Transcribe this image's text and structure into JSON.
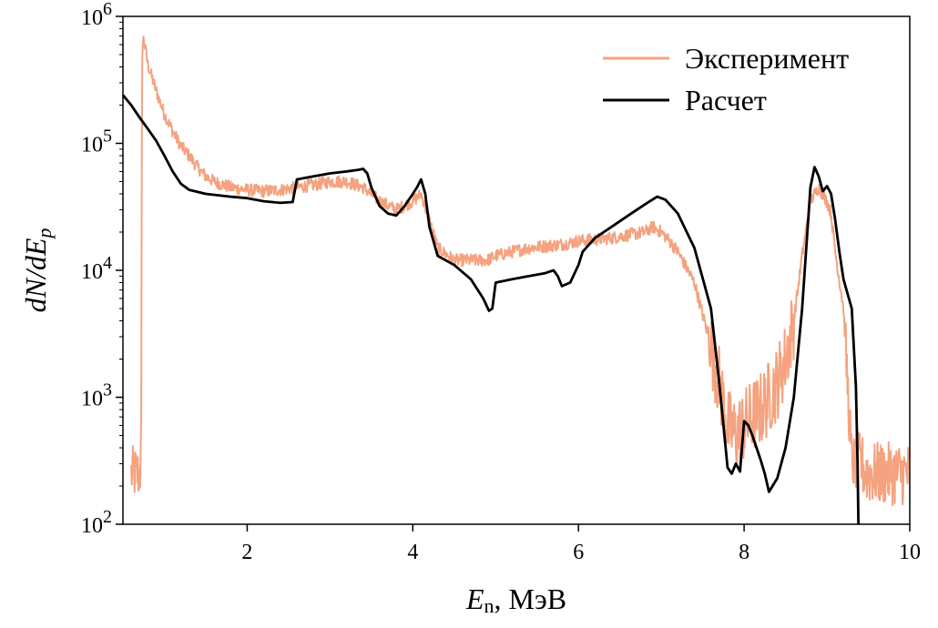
{
  "chart_data": {
    "type": "line",
    "xlabel": "E_n, МэВ",
    "xlabel_main": "E",
    "xlabel_sub": "n",
    "xlabel_unit": ", МэВ",
    "ylabel": "dN/dE_p",
    "xlim": [
      0.5,
      10
    ],
    "ylim": [
      100,
      1000000
    ],
    "yscale": "log",
    "grid": false,
    "legend_position": "top-right",
    "x_ticks": [
      2,
      4,
      6,
      8,
      10
    ],
    "x_tick_labels": [
      "2",
      "4",
      "6",
      "8",
      "10"
    ],
    "y_ticks": [
      100,
      1000,
      10000,
      100000,
      1000000
    ],
    "y_tick_labels": [
      {
        "base": "10",
        "exp": "2"
      },
      {
        "base": "10",
        "exp": "3"
      },
      {
        "base": "10",
        "exp": "4"
      },
      {
        "base": "10",
        "exp": "5"
      },
      {
        "base": "10",
        "exp": "6"
      }
    ],
    "series": [
      {
        "name": "Эксперимент",
        "color": "#f4a27f",
        "style": "noisy",
        "x": [
          0.6,
          0.62,
          0.66,
          0.7,
          0.72,
          0.73,
          0.75,
          0.8,
          0.9,
          1.0,
          1.1,
          1.2,
          1.3,
          1.4,
          1.5,
          1.6,
          1.8,
          2.0,
          2.2,
          2.4,
          2.6,
          2.8,
          3.0,
          3.2,
          3.4,
          3.6,
          3.8,
          4.0,
          4.1,
          4.2,
          4.3,
          4.5,
          4.7,
          4.9,
          5.0,
          5.2,
          5.4,
          5.6,
          5.8,
          6.0,
          6.2,
          6.4,
          6.6,
          6.8,
          6.9,
          7.0,
          7.1,
          7.2,
          7.4,
          7.6,
          7.7,
          7.8,
          7.9,
          8.0,
          8.1,
          8.2,
          8.3,
          8.4,
          8.5,
          8.6,
          8.7,
          8.8,
          8.9,
          9.0,
          9.05,
          9.1,
          9.2,
          9.3,
          9.4,
          9.5,
          9.7,
          9.9,
          10.0
        ],
        "y": [
          250,
          250,
          250,
          250,
          300,
          500000,
          680000,
          420000,
          260000,
          170000,
          125000,
          95000,
          80000,
          65000,
          55000,
          50000,
          45000,
          43000,
          42000,
          43000,
          45000,
          47000,
          50000,
          50000,
          45000,
          35000,
          30000,
          35000,
          40000,
          25000,
          15000,
          12000,
          12000,
          12000,
          13000,
          14000,
          15000,
          15500,
          16000,
          17000,
          17500,
          18000,
          19000,
          20000,
          22000,
          20000,
          17000,
          14000,
          8000,
          2500,
          1300,
          600,
          500,
          600,
          700,
          800,
          1000,
          1300,
          2000,
          4000,
          13000,
          35000,
          45000,
          35000,
          28000,
          14000,
          5000,
          300,
          300,
          250,
          250,
          250,
          250
        ]
      },
      {
        "name": "Расчет",
        "color": "#000000",
        "style": "smooth",
        "x": [
          0.5,
          0.6,
          0.7,
          0.8,
          0.9,
          1.0,
          1.1,
          1.2,
          1.3,
          1.5,
          1.8,
          2.0,
          2.2,
          2.4,
          2.55,
          2.6,
          2.8,
          3.0,
          3.2,
          3.35,
          3.4,
          3.45,
          3.5,
          3.6,
          3.7,
          3.8,
          3.9,
          4.0,
          4.05,
          4.1,
          4.15,
          4.2,
          4.3,
          4.5,
          4.7,
          4.85,
          4.92,
          4.96,
          5.0,
          5.2,
          5.4,
          5.6,
          5.7,
          5.75,
          5.8,
          5.9,
          6.0,
          6.05,
          6.2,
          6.4,
          6.6,
          6.8,
          6.95,
          7.05,
          7.2,
          7.4,
          7.6,
          7.7,
          7.75,
          7.8,
          7.85,
          7.9,
          7.95,
          8.0,
          8.05,
          8.1,
          8.2,
          8.25,
          8.3,
          8.4,
          8.5,
          8.6,
          8.7,
          8.8,
          8.85,
          8.9,
          8.95,
          9.0,
          9.05,
          9.1,
          9.15,
          9.2,
          9.3,
          9.35,
          9.37,
          9.38
        ],
        "y": [
          240000,
          200000,
          160000,
          130000,
          105000,
          80000,
          60000,
          48000,
          43000,
          40000,
          38000,
          37000,
          35000,
          34000,
          34500,
          52000,
          55000,
          58000,
          60000,
          62000,
          63000,
          58000,
          45000,
          32000,
          28000,
          27000,
          32000,
          40000,
          45000,
          52000,
          40000,
          22000,
          13000,
          11000,
          8500,
          6000,
          4800,
          5000,
          8000,
          8500,
          9000,
          9500,
          10000,
          9000,
          7500,
          8000,
          11000,
          14000,
          18000,
          22000,
          27000,
          33000,
          38000,
          36000,
          28000,
          15000,
          5000,
          1300,
          600,
          280,
          250,
          300,
          260,
          650,
          600,
          500,
          320,
          250,
          180,
          230,
          400,
          1000,
          5000,
          45000,
          65000,
          55000,
          42000,
          46000,
          40000,
          25000,
          14000,
          8500,
          5000,
          1200,
          300,
          100
        ]
      }
    ]
  }
}
